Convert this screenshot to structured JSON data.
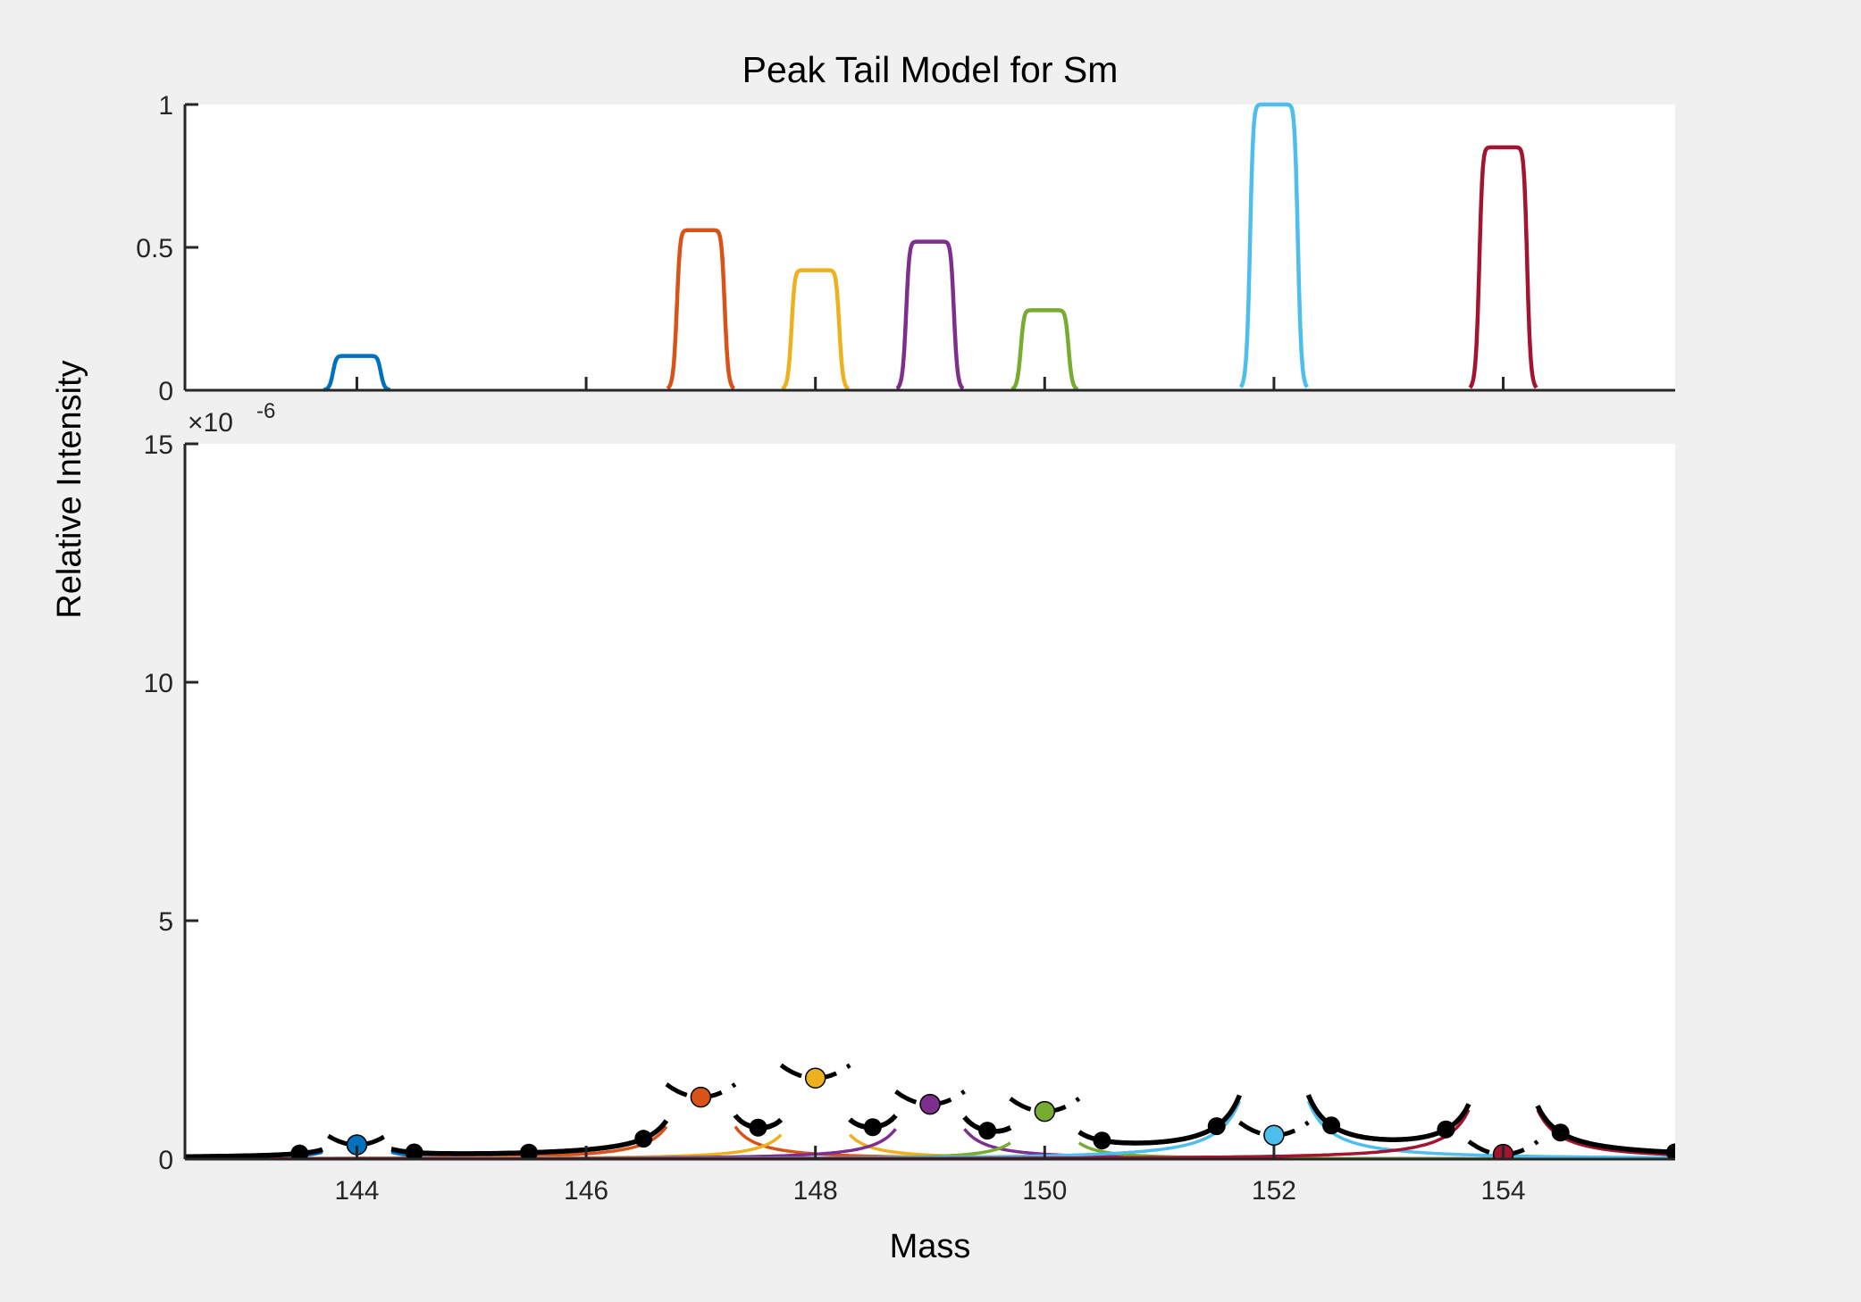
{
  "figure": {
    "background": "#f0f0f0",
    "plot_background": "#ffffff",
    "axis_color": "#262626"
  },
  "chart_data": [
    {
      "type": "line",
      "title": "Peak Tail Model for Sm",
      "xlabel": "",
      "ylabel": "",
      "xlim": [
        142.5,
        155.5
      ],
      "ylim": [
        0,
        1
      ],
      "yticks": [
        0,
        0.5,
        1
      ],
      "ytick_labels": [
        "0",
        "0.5",
        "1"
      ],
      "xticks": [
        144,
        146,
        148,
        150,
        152,
        154
      ],
      "xtick_labels": [],
      "grid": false,
      "peak_shape": "flat-top",
      "peak_width": 0.38,
      "series": [
        {
          "center": 144,
          "value": 0.12,
          "color": "#0072bd"
        },
        {
          "center": 147,
          "value": 0.56,
          "color": "#d95319"
        },
        {
          "center": 148,
          "value": 0.42,
          "color": "#edb120"
        },
        {
          "center": 149,
          "value": 0.52,
          "color": "#7e2f8e"
        },
        {
          "center": 150,
          "value": 0.28,
          "color": "#77ac30"
        },
        {
          "center": 152,
          "value": 1.0,
          "color": "#4dbeee"
        },
        {
          "center": 154,
          "value": 0.85,
          "color": "#a2142f"
        }
      ]
    },
    {
      "type": "line",
      "title": "",
      "xlabel": "Mass",
      "ylabel": "Relative Intensity",
      "y_exponent_label": "×10",
      "y_exponent_power": "-6",
      "xlim": [
        142.5,
        155.5
      ],
      "ylim": [
        0,
        15
      ],
      "yticks": [
        0,
        5,
        10,
        15
      ],
      "ytick_labels": [
        "0",
        "5",
        "10",
        "15"
      ],
      "xticks": [
        144,
        146,
        148,
        150,
        152,
        154
      ],
      "xtick_labels": [
        "144",
        "146",
        "148",
        "150",
        "152",
        "154"
      ],
      "grid": false,
      "units": "1e-6",
      "tail_model": {
        "k": 0.2,
        "power": 1.5,
        "clip_min": 0.045
      },
      "peaks": [
        {
          "center": 144,
          "abundance": 0.12,
          "color": "#0072bd"
        },
        {
          "center": 147,
          "abundance": 0.56,
          "color": "#d95319"
        },
        {
          "center": 148,
          "abundance": 0.42,
          "color": "#edb120"
        },
        {
          "center": 149,
          "abundance": 0.52,
          "color": "#7e2f8e"
        },
        {
          "center": 150,
          "abundance": 0.28,
          "color": "#77ac30"
        },
        {
          "center": 152,
          "abundance": 1.0,
          "color": "#4dbeee"
        },
        {
          "center": 154,
          "abundance": 0.85,
          "color": "#a2142f"
        }
      ],
      "total_segments": [
        {
          "x": [
            142.5,
            143.7
          ]
        },
        {
          "x": [
            144.3,
            146.7
          ]
        },
        {
          "x": [
            147.3,
            147.7
          ]
        },
        {
          "x": [
            148.3,
            148.7
          ]
        },
        {
          "x": [
            149.3,
            149.7
          ]
        },
        {
          "x": [
            150.3,
            151.7
          ]
        },
        {
          "x": [
            152.3,
            153.7
          ]
        },
        {
          "x": [
            154.3,
            155.5
          ]
        }
      ],
      "dashed_segments": [
        {
          "x": [
            143.75,
            144.3
          ],
          "at": 144
        },
        {
          "x": [
            146.7,
            147.3
          ],
          "at": 147
        },
        {
          "x": [
            147.7,
            148.3
          ],
          "at": 148
        },
        {
          "x": [
            148.7,
            149.3
          ],
          "at": 149
        },
        {
          "x": [
            149.7,
            150.3
          ],
          "at": 150
        },
        {
          "x": [
            151.7,
            152.3
          ],
          "at": 152
        },
        {
          "x": [
            153.7,
            154.3
          ],
          "at": 154
        }
      ],
      "black_markers": [
        143.5,
        144.5,
        145.5,
        146.5,
        147.5,
        148.5,
        149.5,
        150.5,
        151.5,
        152.5,
        153.5,
        154.5,
        155.5
      ],
      "colored_markers": [
        {
          "x": 144,
          "y": 0.3,
          "color": "#0072bd"
        },
        {
          "x": 147,
          "y": 1.3,
          "color": "#d95319"
        },
        {
          "x": 148,
          "y": 1.7,
          "color": "#edb120"
        },
        {
          "x": 149,
          "y": 1.15,
          "color": "#7e2f8e"
        },
        {
          "x": 150,
          "y": 1.0,
          "color": "#77ac30"
        },
        {
          "x": 152,
          "y": 0.5,
          "color": "#4dbeee"
        },
        {
          "x": 154,
          "y": 0.1,
          "color": "#a2142f"
        }
      ]
    }
  ]
}
